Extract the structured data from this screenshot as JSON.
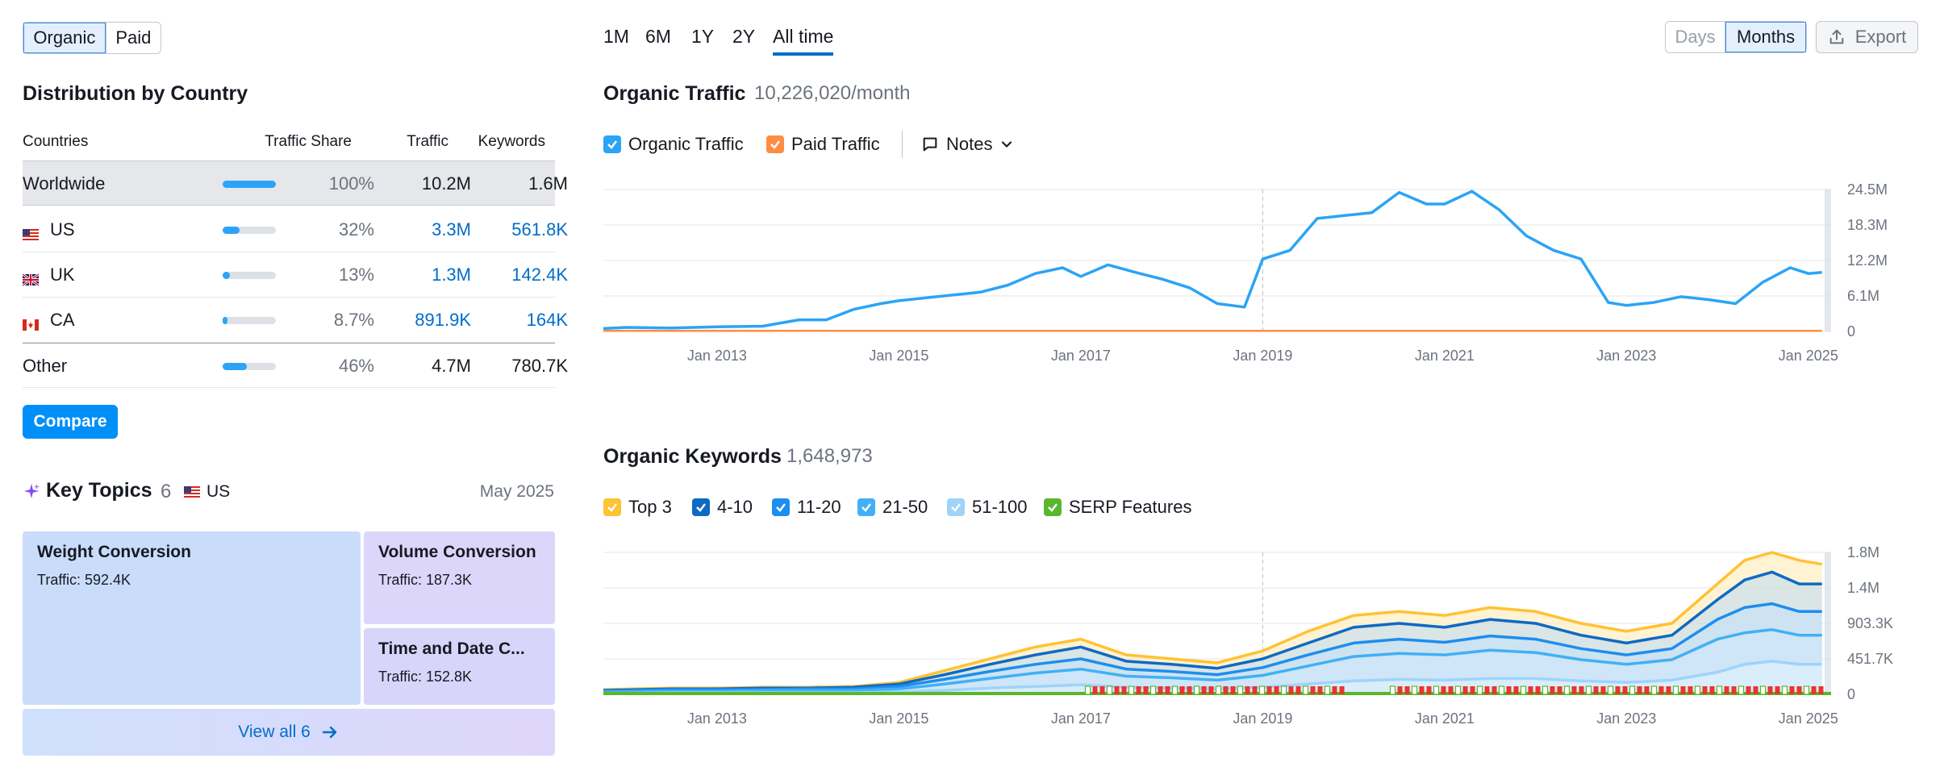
{
  "toggle": {
    "organic": "Organic",
    "paid": "Paid"
  },
  "distribution": {
    "title": "Distribution by Country",
    "headers": {
      "countries": "Countries",
      "share": "Traffic Share",
      "traffic": "Traffic",
      "keywords": "Keywords"
    },
    "rows": [
      {
        "name": "Worldwide",
        "share": "100%",
        "share_value": 100,
        "traffic": "10.2M",
        "keywords": "1.6M",
        "flag": ""
      },
      {
        "name": "US",
        "share": "32%",
        "share_value": 32,
        "traffic": "3.3M",
        "keywords": "561.8K",
        "flag": "us-flag-icon"
      },
      {
        "name": "UK",
        "share": "13%",
        "share_value": 13,
        "traffic": "1.3M",
        "keywords": "142.4K",
        "flag": "uk-flag-icon"
      },
      {
        "name": "CA",
        "share": "8.7%",
        "share_value": 8.7,
        "traffic": "891.9K",
        "keywords": "164K",
        "flag": "ca-flag-icon"
      },
      {
        "name": "Other",
        "share": "46%",
        "share_value": 46,
        "traffic": "4.7M",
        "keywords": "780.7K",
        "flag": ""
      }
    ],
    "compare": "Compare"
  },
  "topics": {
    "title": "Key Topics",
    "count": "6",
    "country": "US",
    "date": "May 2025",
    "tiles": [
      {
        "title": "Weight Conversion",
        "traffic": "Traffic: 592.4K"
      },
      {
        "title": "Volume Conversion",
        "traffic": "Traffic: 187.3K"
      },
      {
        "title": "Time and Date C...",
        "traffic": "Traffic: 152.8K"
      }
    ],
    "view_all": "View all 6"
  },
  "periods": [
    "1M",
    "6M",
    "1Y",
    "2Y",
    "All time"
  ],
  "active_period": "All time",
  "granularity": {
    "days": "Days",
    "months": "Months"
  },
  "export": "Export",
  "traffic_chart": {
    "title": "Organic Traffic",
    "value": "10,226,020/month",
    "legend": {
      "organic": "Organic Traffic",
      "paid": "Paid Traffic",
      "notes": "Notes"
    }
  },
  "keywords_chart": {
    "title": "Organic Keywords",
    "value": "1,648,973",
    "legend": [
      "Top 3",
      "4-10",
      "11-20",
      "21-50",
      "51-100",
      "SERP Features"
    ]
  },
  "colors": {
    "accent": "#006dca",
    "organic": "#2ba4f5",
    "paid": "#ff8c43",
    "top3": "#ffc233",
    "pos410": "#0f6ac2",
    "pos1120": "#1c8ef0",
    "pos2150": "#42b0f5",
    "pos51100": "#9fd3fa",
    "serp": "#59b72c"
  },
  "chart_data": [
    {
      "type": "line",
      "title": "Organic Traffic",
      "x_ticks": [
        "Jan 2013",
        "Jan 2015",
        "Jan 2017",
        "Jan 2019",
        "Jan 2021",
        "Jan 2023",
        "Jan 2025"
      ],
      "y_ticks": [
        "0",
        "6.1M",
        "12.2M",
        "18.3M",
        "24.5M"
      ],
      "ylim": [
        0,
        24.5
      ],
      "x_range": [
        2011.75,
        2025.25
      ],
      "series": [
        {
          "name": "Organic Traffic",
          "x": [
            2011.75,
            2012.0,
            2012.5,
            2013.0,
            2013.5,
            2013.9,
            2014.2,
            2014.5,
            2014.8,
            2015.0,
            2015.3,
            2015.6,
            2015.9,
            2016.2,
            2016.5,
            2016.8,
            2017.0,
            2017.3,
            2017.6,
            2017.9,
            2018.2,
            2018.5,
            2018.8,
            2019.0,
            2019.3,
            2019.6,
            2019.9,
            2020.2,
            2020.5,
            2020.8,
            2021.0,
            2021.3,
            2021.6,
            2021.9,
            2022.2,
            2022.5,
            2022.8,
            2023.0,
            2023.3,
            2023.6,
            2023.9,
            2024.2,
            2024.5,
            2024.8,
            2025.0,
            2025.15
          ],
          "values": [
            0.5,
            0.7,
            0.6,
            0.8,
            0.9,
            2.0,
            2.0,
            3.8,
            4.8,
            5.3,
            5.8,
            6.3,
            6.8,
            8.0,
            10.0,
            11.0,
            9.5,
            11.5,
            10.2,
            9.0,
            7.5,
            4.8,
            4.2,
            12.5,
            14.0,
            19.5,
            20.0,
            20.5,
            24.0,
            22.0,
            22.0,
            24.2,
            21.0,
            16.5,
            14.0,
            12.5,
            5.0,
            4.5,
            5.0,
            6.0,
            5.5,
            4.8,
            8.5,
            11.0,
            10.0,
            10.2
          ]
        },
        {
          "name": "Paid Traffic",
          "x": [
            2011.75,
            2025.15
          ],
          "values": [
            0.1,
            0.1
          ]
        }
      ]
    },
    {
      "type": "area",
      "title": "Organic Keywords",
      "x_ticks": [
        "Jan 2013",
        "Jan 2015",
        "Jan 2017",
        "Jan 2019",
        "Jan 2021",
        "Jan 2023",
        "Jan 2025"
      ],
      "y_ticks": [
        "0",
        "451.7K",
        "903.3K",
        "1.4M",
        "1.8M"
      ],
      "ylim": [
        0,
        1.8
      ],
      "x_range": [
        2011.75,
        2025.25
      ],
      "x": [
        2011.75,
        2012.5,
        2013.0,
        2013.5,
        2014.0,
        2014.5,
        2015.0,
        2015.5,
        2016.0,
        2016.5,
        2017.0,
        2017.5,
        2018.0,
        2018.5,
        2019.0,
        2019.5,
        2020.0,
        2020.5,
        2021.0,
        2021.5,
        2022.0,
        2022.5,
        2023.0,
        2023.5,
        2024.0,
        2024.3,
        2024.6,
        2024.9,
        2025.15
      ],
      "series": [
        {
          "name": "Top 3",
          "values": [
            0.06,
            0.08,
            0.08,
            0.09,
            0.09,
            0.1,
            0.15,
            0.3,
            0.45,
            0.6,
            0.7,
            0.5,
            0.45,
            0.4,
            0.55,
            0.8,
            1.0,
            1.05,
            1.0,
            1.1,
            1.05,
            0.9,
            0.8,
            0.9,
            1.4,
            1.7,
            1.8,
            1.7,
            1.65
          ]
        },
        {
          "name": "4-10",
          "values": [
            0.05,
            0.07,
            0.07,
            0.08,
            0.08,
            0.09,
            0.13,
            0.25,
            0.38,
            0.5,
            0.6,
            0.42,
            0.38,
            0.33,
            0.45,
            0.65,
            0.85,
            0.9,
            0.85,
            0.95,
            0.9,
            0.75,
            0.65,
            0.75,
            1.2,
            1.45,
            1.55,
            1.4,
            1.4
          ]
        },
        {
          "name": "11-20",
          "values": [
            0.04,
            0.06,
            0.06,
            0.06,
            0.07,
            0.07,
            0.1,
            0.19,
            0.29,
            0.38,
            0.45,
            0.32,
            0.29,
            0.25,
            0.34,
            0.5,
            0.65,
            0.7,
            0.66,
            0.74,
            0.7,
            0.58,
            0.5,
            0.58,
            0.95,
            1.1,
            1.15,
            1.05,
            1.05
          ]
        },
        {
          "name": "21-50",
          "values": [
            0.03,
            0.04,
            0.04,
            0.05,
            0.05,
            0.05,
            0.07,
            0.13,
            0.2,
            0.27,
            0.32,
            0.23,
            0.21,
            0.18,
            0.24,
            0.36,
            0.48,
            0.52,
            0.5,
            0.56,
            0.53,
            0.44,
            0.38,
            0.44,
            0.7,
            0.78,
            0.82,
            0.75,
            0.75
          ]
        },
        {
          "name": "51-100",
          "values": [
            0.01,
            0.02,
            0.02,
            0.02,
            0.02,
            0.02,
            0.03,
            0.05,
            0.08,
            0.1,
            0.12,
            0.09,
            0.08,
            0.07,
            0.09,
            0.13,
            0.17,
            0.19,
            0.18,
            0.2,
            0.2,
            0.17,
            0.15,
            0.18,
            0.28,
            0.38,
            0.42,
            0.38,
            0.38
          ]
        }
      ]
    }
  ]
}
